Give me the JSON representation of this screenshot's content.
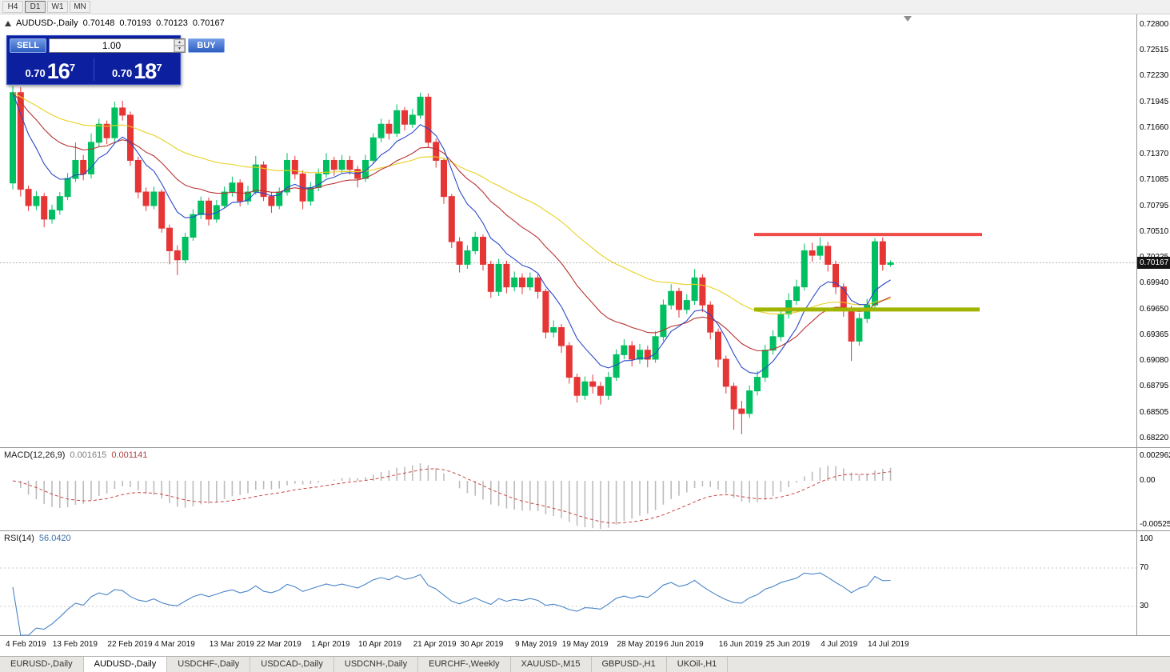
{
  "toolbar": {
    "timeframes": [
      {
        "label": "H4",
        "active": false
      },
      {
        "label": "D1",
        "active": true
      },
      {
        "label": "W1",
        "active": false
      },
      {
        "label": "MN",
        "active": false
      }
    ]
  },
  "chart_header": {
    "symbol_title": "AUDUSD-,Daily",
    "open": "0.70148",
    "high": "0.70193",
    "low": "0.70123",
    "close": "0.70167"
  },
  "trade_panel": {
    "sell_label": "SELL",
    "buy_label": "BUY",
    "volume": "1.00",
    "sell_price_small": "0.70",
    "sell_price_big": "16",
    "sell_price_sup": "7",
    "buy_price_small": "0.70",
    "buy_price_big": "18",
    "buy_price_sup": "7"
  },
  "price_axis": {
    "labels": [
      "0.72800",
      "0.72515",
      "0.72230",
      "0.71945",
      "0.71660",
      "0.71370",
      "0.71085",
      "0.70795",
      "0.70510",
      "0.70225",
      "0.69940",
      "0.69650",
      "0.69365",
      "0.69080",
      "0.68795",
      "0.68505",
      "0.68220"
    ],
    "current": "0.70167"
  },
  "macd_panel": {
    "name": "MACD(12,26,9)",
    "value_main": "0.001615",
    "value_signal": "0.001141",
    "axis": [
      "0.002962",
      "0.00",
      "-0.005255"
    ]
  },
  "rsi_panel": {
    "name": "RSI(14)",
    "value": "56.0420",
    "axis": [
      "100",
      "70",
      "30"
    ]
  },
  "time_axis": {
    "labels": [
      {
        "text": "4 Feb 2019",
        "i": 0
      },
      {
        "text": "13 Feb 2019",
        "i": 6
      },
      {
        "text": "22 Feb 2019",
        "i": 13
      },
      {
        "text": "4 Mar 2019",
        "i": 19
      },
      {
        "text": "13 Mar 2019",
        "i": 26
      },
      {
        "text": "22 Mar 2019",
        "i": 32
      },
      {
        "text": "1 Apr 2019",
        "i": 39
      },
      {
        "text": "10 Apr 2019",
        "i": 45
      },
      {
        "text": "21 Apr 2019",
        "i": 52
      },
      {
        "text": "30 Apr 2019",
        "i": 58
      },
      {
        "text": "9 May 2019",
        "i": 65
      },
      {
        "text": "19 May 2019",
        "i": 71
      },
      {
        "text": "28 May 2019",
        "i": 78
      },
      {
        "text": "6 Jun 2019",
        "i": 84
      },
      {
        "text": "16 Jun 2019",
        "i": 91
      },
      {
        "text": "25 Jun 2019",
        "i": 97
      },
      {
        "text": "4 Jul 2019",
        "i": 104
      },
      {
        "text": "14 Jul 2019",
        "i": 110
      }
    ]
  },
  "tabs": [
    {
      "label": "EURUSD-,Daily",
      "active": false
    },
    {
      "label": "AUDUSD-,Daily",
      "active": true
    },
    {
      "label": "USDCHF-,Daily",
      "active": false
    },
    {
      "label": "USDCAD-,Daily",
      "active": false
    },
    {
      "label": "USDCNH-,Daily",
      "active": false
    },
    {
      "label": "EURCHF-,Weekly",
      "active": false
    },
    {
      "label": "XAUUSD-,M15",
      "active": false
    },
    {
      "label": "GBPUSD-,H1",
      "active": false
    },
    {
      "label": "UKOil-,H1",
      "active": false
    }
  ],
  "chart_data": {
    "type": "candlestick",
    "symbol": "AUDUSD",
    "timeframe": "Daily",
    "price_range": {
      "top": 0.728,
      "bottom": 0.6822
    },
    "current_price": 0.70167,
    "levels": {
      "resistance": 0.7048,
      "support": 0.6965
    },
    "indicators": {
      "macd_value": 0.001615,
      "macd_signal_value": 0.001141,
      "rsi_value": 56.042
    },
    "colors": {
      "up": "#00bf60",
      "down": "#e53535",
      "ma_fast": "#2a49c8",
      "ma_mid": "#b83232",
      "ma_slow": "#e8d020",
      "resistance": "#f04b46",
      "support": "#a0b400",
      "macd_hist": "#bcbcbc",
      "macd_signal": "#cc4444",
      "rsi": "#4a85c8"
    },
    "ohlc": [
      [
        0.7105,
        0.7212,
        0.7098,
        0.7205
      ],
      [
        0.7205,
        0.7211,
        0.709,
        0.7098
      ],
      [
        0.7098,
        0.7102,
        0.7074,
        0.708
      ],
      [
        0.708,
        0.7096,
        0.7075,
        0.709
      ],
      [
        0.709,
        0.7094,
        0.7056,
        0.7065
      ],
      [
        0.7065,
        0.7081,
        0.706,
        0.7075
      ],
      [
        0.7075,
        0.7095,
        0.707,
        0.709
      ],
      [
        0.709,
        0.7116,
        0.7086,
        0.711
      ],
      [
        0.711,
        0.715,
        0.7106,
        0.713
      ],
      [
        0.713,
        0.7136,
        0.7108,
        0.7115
      ],
      [
        0.7115,
        0.716,
        0.711,
        0.715
      ],
      [
        0.715,
        0.7176,
        0.7145,
        0.717
      ],
      [
        0.717,
        0.7174,
        0.7148,
        0.7155
      ],
      [
        0.7155,
        0.7195,
        0.715,
        0.7188
      ],
      [
        0.7188,
        0.7196,
        0.7174,
        0.718
      ],
      [
        0.718,
        0.7184,
        0.7124,
        0.713
      ],
      [
        0.713,
        0.7134,
        0.7088,
        0.7095
      ],
      [
        0.7095,
        0.71,
        0.7074,
        0.708
      ],
      [
        0.708,
        0.7101,
        0.7076,
        0.7095
      ],
      [
        0.7095,
        0.7098,
        0.705,
        0.7055
      ],
      [
        0.7055,
        0.7059,
        0.7015,
        0.703
      ],
      [
        0.703,
        0.7036,
        0.7003,
        0.702
      ],
      [
        0.702,
        0.705,
        0.7016,
        0.7045
      ],
      [
        0.7045,
        0.7076,
        0.7041,
        0.707
      ],
      [
        0.707,
        0.709,
        0.7065,
        0.7085
      ],
      [
        0.7085,
        0.7089,
        0.7058,
        0.7065
      ],
      [
        0.7065,
        0.7086,
        0.7061,
        0.708
      ],
      [
        0.708,
        0.7101,
        0.7077,
        0.7095
      ],
      [
        0.7095,
        0.7112,
        0.709,
        0.7105
      ],
      [
        0.7105,
        0.7109,
        0.7079,
        0.7085
      ],
      [
        0.7085,
        0.7102,
        0.7081,
        0.7095
      ],
      [
        0.7095,
        0.7135,
        0.7092,
        0.7125
      ],
      [
        0.7125,
        0.7129,
        0.7085,
        0.709
      ],
      [
        0.709,
        0.7095,
        0.7072,
        0.708
      ],
      [
        0.708,
        0.71,
        0.7076,
        0.7095
      ],
      [
        0.7095,
        0.7138,
        0.7091,
        0.713
      ],
      [
        0.713,
        0.7135,
        0.7109,
        0.7115
      ],
      [
        0.7115,
        0.7119,
        0.7076,
        0.7085
      ],
      [
        0.7085,
        0.7106,
        0.708,
        0.71
      ],
      [
        0.71,
        0.7121,
        0.7096,
        0.7115
      ],
      [
        0.7115,
        0.7138,
        0.7111,
        0.713
      ],
      [
        0.713,
        0.7134,
        0.7113,
        0.712
      ],
      [
        0.712,
        0.7136,
        0.7116,
        0.713
      ],
      [
        0.713,
        0.7135,
        0.7114,
        0.712
      ],
      [
        0.712,
        0.7124,
        0.71,
        0.711
      ],
      [
        0.711,
        0.7136,
        0.7106,
        0.713
      ],
      [
        0.713,
        0.716,
        0.7126,
        0.7155
      ],
      [
        0.7155,
        0.7176,
        0.715,
        0.717
      ],
      [
        0.717,
        0.7175,
        0.7153,
        0.716
      ],
      [
        0.716,
        0.7192,
        0.7156,
        0.7185
      ],
      [
        0.7185,
        0.7189,
        0.7163,
        0.717
      ],
      [
        0.717,
        0.7187,
        0.7166,
        0.718
      ],
      [
        0.718,
        0.7205,
        0.7176,
        0.72
      ],
      [
        0.72,
        0.7204,
        0.7144,
        0.715
      ],
      [
        0.715,
        0.7154,
        0.7122,
        0.713
      ],
      [
        0.713,
        0.7133,
        0.7082,
        0.709
      ],
      [
        0.709,
        0.7093,
        0.7033,
        0.704
      ],
      [
        0.704,
        0.7045,
        0.7006,
        0.7015
      ],
      [
        0.7015,
        0.7036,
        0.701,
        0.703
      ],
      [
        0.703,
        0.7051,
        0.7026,
        0.7045
      ],
      [
        0.7045,
        0.7048,
        0.7008,
        0.7015
      ],
      [
        0.7015,
        0.7019,
        0.6978,
        0.6985
      ],
      [
        0.6985,
        0.7021,
        0.698,
        0.7015
      ],
      [
        0.7015,
        0.7019,
        0.6983,
        0.699
      ],
      [
        0.699,
        0.7007,
        0.6985,
        0.7
      ],
      [
        0.7,
        0.7005,
        0.6982,
        0.699
      ],
      [
        0.699,
        0.7006,
        0.6986,
        0.7
      ],
      [
        0.7,
        0.7004,
        0.6977,
        0.6985
      ],
      [
        0.6985,
        0.6988,
        0.6933,
        0.694
      ],
      [
        0.694,
        0.6953,
        0.6934,
        0.6945
      ],
      [
        0.6945,
        0.6949,
        0.6917,
        0.6925
      ],
      [
        0.6925,
        0.6929,
        0.6883,
        0.689
      ],
      [
        0.689,
        0.6894,
        0.6862,
        0.687
      ],
      [
        0.687,
        0.6891,
        0.6865,
        0.6885
      ],
      [
        0.6885,
        0.6893,
        0.6872,
        0.688
      ],
      [
        0.688,
        0.6885,
        0.686,
        0.687
      ],
      [
        0.687,
        0.6896,
        0.6865,
        0.689
      ],
      [
        0.689,
        0.6921,
        0.6886,
        0.6915
      ],
      [
        0.6915,
        0.6932,
        0.691,
        0.6925
      ],
      [
        0.6925,
        0.693,
        0.6902,
        0.691
      ],
      [
        0.691,
        0.6927,
        0.6905,
        0.692
      ],
      [
        0.692,
        0.6925,
        0.6901,
        0.691
      ],
      [
        0.691,
        0.6941,
        0.6906,
        0.6935
      ],
      [
        0.6935,
        0.6976,
        0.693,
        0.697
      ],
      [
        0.697,
        0.6993,
        0.6965,
        0.6985
      ],
      [
        0.6985,
        0.6989,
        0.6956,
        0.6965
      ],
      [
        0.6965,
        0.6982,
        0.696,
        0.6975
      ],
      [
        0.6975,
        0.701,
        0.697,
        0.7
      ],
      [
        0.7,
        0.7004,
        0.6962,
        0.697
      ],
      [
        0.697,
        0.6974,
        0.6932,
        0.694
      ],
      [
        0.694,
        0.6944,
        0.6901,
        0.691
      ],
      [
        0.691,
        0.6914,
        0.6872,
        0.688
      ],
      [
        0.688,
        0.6884,
        0.6832,
        0.6855
      ],
      [
        0.6855,
        0.6864,
        0.6827,
        0.685
      ],
      [
        0.685,
        0.6881,
        0.6845,
        0.6875
      ],
      [
        0.6875,
        0.6897,
        0.687,
        0.689
      ],
      [
        0.689,
        0.6926,
        0.6885,
        0.692
      ],
      [
        0.692,
        0.6942,
        0.6915,
        0.6935
      ],
      [
        0.6935,
        0.6967,
        0.693,
        0.696
      ],
      [
        0.696,
        0.6983,
        0.6955,
        0.6975
      ],
      [
        0.6975,
        0.6998,
        0.697,
        0.699
      ],
      [
        0.699,
        0.7038,
        0.6986,
        0.703
      ],
      [
        0.703,
        0.7039,
        0.7018,
        0.7025
      ],
      [
        0.7025,
        0.7045,
        0.702,
        0.7035
      ],
      [
        0.7035,
        0.704,
        0.7007,
        0.7015
      ],
      [
        0.7015,
        0.7019,
        0.6982,
        0.699
      ],
      [
        0.699,
        0.6994,
        0.6957,
        0.6965
      ],
      [
        0.6965,
        0.6969,
        0.6908,
        0.693
      ],
      [
        0.693,
        0.6961,
        0.6925,
        0.6955
      ],
      [
        0.6955,
        0.6977,
        0.695,
        0.697
      ],
      [
        0.697,
        0.7044,
        0.6965,
        0.704
      ],
      [
        0.704,
        0.7045,
        0.7008,
        0.7015
      ],
      [
        0.70148,
        0.70193,
        0.70123,
        0.70167
      ]
    ]
  }
}
